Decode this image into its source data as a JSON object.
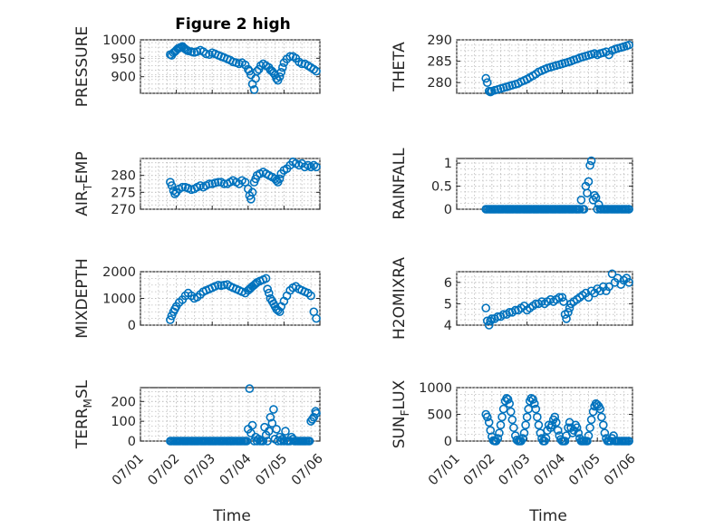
{
  "figure": {
    "title": "Figure 2 high",
    "marker_color": "#0072BD",
    "time_ticks": [
      "07/01",
      "07/02",
      "07/03",
      "07/04",
      "07/05",
      "07/06"
    ],
    "time_tick_days": [
      1,
      2,
      3,
      4,
      5,
      6
    ],
    "xlabel": "Time"
  },
  "chart_data": [
    {
      "type": "scatter",
      "ylabel": "PRESSURE",
      "title": "Figure 2 high",
      "xlim": [
        1,
        6
      ],
      "ylim": [
        855,
        1000
      ],
      "yticks": [
        900,
        950,
        1000
      ],
      "ytick_labels": [
        "900",
        "950",
        "1000"
      ],
      "grid": true,
      "x": [
        1.83,
        1.87,
        1.92,
        1.96,
        2.0,
        2.04,
        2.08,
        2.12,
        2.17,
        2.21,
        2.25,
        2.29,
        2.33,
        2.42,
        2.5,
        2.58,
        2.67,
        2.75,
        2.83,
        2.92,
        3.0,
        3.08,
        3.17,
        3.25,
        3.33,
        3.42,
        3.5,
        3.58,
        3.67,
        3.75,
        3.83,
        3.92,
        4.0,
        4.04,
        4.08,
        4.12,
        4.17,
        4.21,
        4.25,
        4.3,
        4.35,
        4.42,
        4.5,
        4.58,
        4.62,
        4.67,
        4.71,
        4.75,
        4.79,
        4.83,
        4.88,
        4.92,
        4.96,
        5.0,
        5.08,
        5.17,
        5.25,
        5.33,
        5.42,
        5.5,
        5.58,
        5.67,
        5.75,
        5.83,
        5.9
      ],
      "y": [
        960,
        958,
        965,
        968,
        972,
        976,
        978,
        980,
        982,
        978,
        975,
        972,
        970,
        968,
        966,
        968,
        972,
        968,
        962,
        960,
        965,
        962,
        958,
        955,
        952,
        948,
        945,
        940,
        938,
        935,
        938,
        932,
        920,
        915,
        905,
        880,
        865,
        895,
        915,
        920,
        930,
        935,
        930,
        925,
        918,
        915,
        910,
        905,
        895,
        890,
        900,
        912,
        925,
        938,
        948,
        955,
        955,
        950,
        940,
        935,
        935,
        930,
        925,
        920,
        915
      ]
    },
    {
      "type": "scatter",
      "ylabel": "THETA",
      "xlim": [
        1,
        6
      ],
      "ylim": [
        277.5,
        290
      ],
      "yticks": [
        280,
        285,
        290
      ],
      "ytick_labels": [
        "280",
        "285",
        "290"
      ],
      "grid": true,
      "x": [
        1.83,
        1.87,
        1.92,
        1.96,
        2.0,
        2.08,
        2.17,
        2.25,
        2.33,
        2.42,
        2.5,
        2.58,
        2.67,
        2.75,
        2.83,
        2.92,
        3.0,
        3.08,
        3.17,
        3.25,
        3.33,
        3.42,
        3.5,
        3.58,
        3.67,
        3.75,
        3.83,
        3.92,
        4.0,
        4.08,
        4.17,
        4.25,
        4.33,
        4.42,
        4.5,
        4.58,
        4.67,
        4.75,
        4.83,
        4.92,
        5.0,
        5.08,
        5.17,
        5.25,
        5.33,
        5.42,
        5.5,
        5.58,
        5.67,
        5.75,
        5.83,
        5.9
      ],
      "y": [
        281,
        280,
        278,
        277.8,
        278,
        278.2,
        278.4,
        278.6,
        278.8,
        279,
        279.2,
        279.4,
        279.6,
        279.8,
        280.2,
        280.5,
        280.8,
        281.2,
        281.6,
        282,
        282.5,
        282.8,
        283.1,
        283.4,
        283.6,
        283.8,
        284,
        284.2,
        284.4,
        284.6,
        284.8,
        285,
        285.3,
        285.5,
        285.8,
        286,
        286.2,
        286.4,
        286.6,
        286.8,
        286.5,
        286.8,
        287,
        287.2,
        286.5,
        287.5,
        287.8,
        288,
        288.2,
        288.4,
        288.6,
        288.8
      ]
    },
    {
      "type": "scatter",
      "ylabel": "AIR_TEMP",
      "xlim": [
        1,
        6
      ],
      "ylim": [
        270,
        285
      ],
      "yticks": [
        270,
        275,
        280
      ],
      "ytick_labels": [
        "270",
        "275",
        "280"
      ],
      "grid": true,
      "x": [
        1.83,
        1.87,
        1.92,
        1.96,
        2.0,
        2.08,
        2.17,
        2.25,
        2.33,
        2.42,
        2.5,
        2.58,
        2.67,
        2.75,
        2.83,
        2.92,
        3.0,
        3.08,
        3.17,
        3.25,
        3.33,
        3.42,
        3.5,
        3.58,
        3.67,
        3.75,
        3.83,
        3.92,
        4.0,
        4.04,
        4.08,
        4.12,
        4.17,
        4.21,
        4.25,
        4.33,
        4.42,
        4.5,
        4.58,
        4.67,
        4.75,
        4.79,
        4.83,
        4.88,
        4.92,
        5.0,
        5.08,
        5.17,
        5.25,
        5.33,
        5.42,
        5.5,
        5.58,
        5.67,
        5.75,
        5.83,
        5.9
      ],
      "y": [
        278,
        277,
        275.5,
        274.5,
        275,
        276,
        276.5,
        276.5,
        276.2,
        275.8,
        276,
        276.5,
        277,
        276.5,
        277,
        277.5,
        277.5,
        277.8,
        278,
        278,
        277.5,
        277.5,
        278,
        278.5,
        278,
        277.5,
        278.5,
        278,
        276,
        274,
        273,
        275,
        278,
        279,
        280,
        280.5,
        281,
        280.5,
        280,
        279.5,
        279,
        278.5,
        278,
        279,
        280.5,
        281.5,
        282,
        283,
        284,
        283.5,
        283,
        283.5,
        282.5,
        283,
        282.5,
        283,
        282.5
      ]
    },
    {
      "type": "scatter",
      "ylabel": "RAINFALL",
      "xlim": [
        1,
        6
      ],
      "ylim": [
        0,
        1.1
      ],
      "yticks": [
        0,
        0.5,
        1
      ],
      "ytick_labels": [
        "0",
        "0.5",
        "1"
      ],
      "grid": true,
      "x": [
        1.83,
        1.87,
        1.92,
        1.96,
        2.0,
        2.04,
        2.08,
        2.12,
        2.17,
        2.21,
        2.25,
        2.29,
        2.33,
        2.38,
        2.42,
        2.46,
        2.5,
        2.54,
        2.58,
        2.62,
        2.67,
        2.71,
        2.75,
        2.79,
        2.83,
        2.88,
        2.92,
        2.96,
        3.0,
        3.04,
        3.08,
        3.12,
        3.17,
        3.21,
        3.25,
        3.29,
        3.33,
        3.38,
        3.42,
        3.46,
        3.5,
        3.54,
        3.58,
        3.62,
        3.67,
        3.71,
        3.75,
        3.79,
        3.83,
        3.88,
        3.92,
        3.96,
        4.0,
        4.04,
        4.08,
        4.12,
        4.17,
        4.21,
        4.25,
        4.29,
        4.33,
        4.38,
        4.42,
        4.46,
        4.5,
        4.54,
        4.58,
        4.62,
        4.67,
        4.71,
        4.75,
        4.79,
        4.83,
        4.88,
        4.92,
        4.96,
        5.0,
        5.04,
        5.08,
        5.12,
        5.17,
        5.21,
        5.25,
        5.29,
        5.33,
        5.38,
        5.42,
        5.46,
        5.5,
        5.54,
        5.58,
        5.62,
        5.67,
        5.71,
        5.75,
        5.79,
        5.83,
        5.88,
        5.9
      ],
      "y": [
        0,
        0,
        0,
        0,
        0,
        0,
        0,
        0,
        0,
        0,
        0,
        0,
        0,
        0,
        0,
        0,
        0,
        0,
        0,
        0,
        0,
        0,
        0,
        0,
        0,
        0,
        0,
        0,
        0,
        0,
        0,
        0,
        0,
        0,
        0,
        0,
        0,
        0,
        0,
        0,
        0,
        0,
        0,
        0,
        0,
        0,
        0,
        0,
        0,
        0,
        0,
        0,
        0,
        0,
        0,
        0,
        0,
        0,
        0,
        0,
        0,
        0,
        0,
        0,
        0,
        0.2,
        0,
        0,
        0.5,
        0.35,
        0.6,
        0.95,
        1.05,
        0.2,
        0.3,
        0.25,
        0,
        0.1,
        0,
        0,
        0,
        0,
        0,
        0,
        0,
        0,
        0,
        0,
        0,
        0,
        0,
        0,
        0,
        0,
        0,
        0,
        0,
        0,
        0
      ]
    },
    {
      "type": "scatter",
      "ylabel": "MIXDEPTH",
      "xlim": [
        1,
        6
      ],
      "ylim": [
        0,
        2000
      ],
      "yticks": [
        0,
        1000,
        2000
      ],
      "ytick_labels": [
        "0",
        "1000",
        "2000"
      ],
      "grid": true,
      "x": [
        1.83,
        1.87,
        1.92,
        1.96,
        2.0,
        2.08,
        2.17,
        2.25,
        2.33,
        2.42,
        2.5,
        2.58,
        2.67,
        2.75,
        2.83,
        2.92,
        3.0,
        3.08,
        3.17,
        3.25,
        3.33,
        3.42,
        3.5,
        3.58,
        3.67,
        3.75,
        3.83,
        3.92,
        4.0,
        4.04,
        4.08,
        4.12,
        4.17,
        4.21,
        4.25,
        4.33,
        4.42,
        4.5,
        4.54,
        4.58,
        4.62,
        4.67,
        4.71,
        4.75,
        4.79,
        4.83,
        4.88,
        4.92,
        5.0,
        5.08,
        5.17,
        5.25,
        5.33,
        5.42,
        5.5,
        5.58,
        5.67,
        5.75,
        5.83,
        5.9
      ],
      "y": [
        200,
        350,
        500,
        600,
        700,
        850,
        950,
        1100,
        1200,
        1100,
        1000,
        1050,
        1150,
        1250,
        1300,
        1350,
        1400,
        1450,
        1500,
        1480,
        1500,
        1520,
        1450,
        1400,
        1350,
        1300,
        1250,
        1200,
        1300,
        1350,
        1400,
        1450,
        1500,
        1550,
        1600,
        1650,
        1700,
        1750,
        1350,
        1200,
        1000,
        900,
        800,
        700,
        600,
        550,
        500,
        700,
        900,
        1100,
        1300,
        1400,
        1450,
        1350,
        1300,
        1250,
        1200,
        1100,
        500,
        250
      ]
    },
    {
      "type": "scatter",
      "ylabel": "H2OMIXRA",
      "xlim": [
        1,
        6
      ],
      "ylim": [
        4,
        6.5
      ],
      "yticks": [
        4,
        5,
        6
      ],
      "ytick_labels": [
        "4",
        "5",
        "6"
      ],
      "grid": true,
      "x": [
        1.83,
        1.87,
        1.92,
        1.96,
        2.0,
        2.08,
        2.17,
        2.25,
        2.33,
        2.42,
        2.5,
        2.58,
        2.67,
        2.75,
        2.83,
        2.92,
        3.0,
        3.08,
        3.17,
        3.25,
        3.33,
        3.42,
        3.5,
        3.58,
        3.67,
        3.75,
        3.83,
        3.92,
        4.0,
        4.04,
        4.08,
        4.12,
        4.17,
        4.21,
        4.25,
        4.33,
        4.42,
        4.5,
        4.58,
        4.67,
        4.75,
        4.83,
        4.92,
        5.0,
        5.08,
        5.17,
        5.25,
        5.33,
        5.42,
        5.5,
        5.58,
        5.67,
        5.75,
        5.83,
        5.9
      ],
      "y": [
        4.8,
        4.2,
        4.0,
        4.2,
        4.3,
        4.3,
        4.4,
        4.4,
        4.5,
        4.5,
        4.6,
        4.6,
        4.7,
        4.7,
        4.8,
        4.9,
        4.7,
        4.8,
        4.9,
        5.0,
        5.0,
        5.1,
        5.0,
        5.1,
        5.2,
        5.1,
        5.2,
        5.3,
        5.3,
        5.1,
        4.5,
        4.3,
        4.6,
        4.8,
        5.0,
        5.1,
        5.2,
        5.3,
        5.4,
        5.5,
        5.3,
        5.6,
        5.5,
        5.7,
        5.6,
        5.8,
        5.6,
        5.8,
        6.4,
        6.0,
        6.2,
        5.9,
        6.1,
        6.2,
        6.0
      ]
    },
    {
      "type": "scatter",
      "ylabel": "TERR_MSL",
      "xlim": [
        1,
        6
      ],
      "ylim": [
        0,
        270
      ],
      "yticks": [
        0,
        100,
        200
      ],
      "ytick_labels": [
        "0",
        "100",
        "200"
      ],
      "grid": true,
      "x": [
        1.83,
        1.87,
        1.92,
        1.96,
        2.0,
        2.04,
        2.08,
        2.12,
        2.17,
        2.21,
        2.25,
        2.29,
        2.33,
        2.38,
        2.42,
        2.46,
        2.5,
        2.54,
        2.58,
        2.62,
        2.67,
        2.71,
        2.75,
        2.79,
        2.83,
        2.88,
        2.92,
        2.96,
        3.0,
        3.04,
        3.08,
        3.12,
        3.17,
        3.21,
        3.25,
        3.29,
        3.33,
        3.38,
        3.42,
        3.46,
        3.5,
        3.54,
        3.58,
        3.62,
        3.67,
        3.71,
        3.75,
        3.79,
        3.83,
        3.88,
        3.92,
        3.96,
        4.0,
        4.04,
        4.08,
        4.12,
        4.17,
        4.21,
        4.25,
        4.29,
        4.33,
        4.38,
        4.42,
        4.46,
        4.5,
        4.54,
        4.58,
        4.62,
        4.67,
        4.71,
        4.75,
        4.79,
        4.83,
        4.88,
        4.92,
        4.96,
        5.0,
        5.04,
        5.08,
        5.12,
        5.17,
        5.21,
        5.25,
        5.29,
        5.33,
        5.38,
        5.42,
        5.46,
        5.5,
        5.54,
        5.58,
        5.62,
        5.67,
        5.71,
        5.75,
        5.79,
        5.83,
        5.88,
        5.9
      ],
      "y": [
        0,
        0,
        0,
        0,
        0,
        0,
        0,
        0,
        0,
        0,
        0,
        0,
        0,
        0,
        0,
        0,
        0,
        0,
        0,
        0,
        0,
        0,
        0,
        0,
        0,
        0,
        0,
        0,
        0,
        0,
        0,
        0,
        0,
        0,
        0,
        0,
        0,
        0,
        0,
        0,
        0,
        0,
        0,
        0,
        0,
        0,
        0,
        0,
        0,
        0,
        0,
        0,
        60,
        265,
        40,
        80,
        0,
        20,
        0,
        10,
        0,
        0,
        0,
        70,
        30,
        0,
        50,
        120,
        90,
        160,
        10,
        60,
        0,
        20,
        0,
        10,
        0,
        50,
        0,
        0,
        0,
        20,
        10,
        0,
        0,
        0,
        0,
        0,
        0,
        0,
        0,
        0,
        0,
        0,
        100,
        110,
        120,
        150,
        140
      ]
    },
    {
      "type": "scatter",
      "ylabel": "SUN_FLUX",
      "xlim": [
        1,
        6
      ],
      "ylim": [
        0,
        1000
      ],
      "yticks": [
        0,
        500,
        1000
      ],
      "ytick_labels": [
        "0",
        "500",
        "1000"
      ],
      "grid": true,
      "x": [
        1.83,
        1.87,
        1.92,
        1.96,
        2.0,
        2.04,
        2.08,
        2.12,
        2.17,
        2.21,
        2.25,
        2.29,
        2.33,
        2.38,
        2.42,
        2.46,
        2.5,
        2.54,
        2.58,
        2.62,
        2.67,
        2.71,
        2.75,
        2.79,
        2.83,
        2.88,
        2.92,
        2.96,
        3.0,
        3.04,
        3.08,
        3.12,
        3.17,
        3.21,
        3.25,
        3.29,
        3.33,
        3.38,
        3.42,
        3.46,
        3.5,
        3.54,
        3.58,
        3.62,
        3.67,
        3.71,
        3.75,
        3.79,
        3.83,
        3.88,
        3.92,
        3.96,
        4.0,
        4.04,
        4.08,
        4.12,
        4.17,
        4.21,
        4.25,
        4.29,
        4.33,
        4.38,
        4.42,
        4.46,
        4.5,
        4.54,
        4.58,
        4.62,
        4.67,
        4.71,
        4.75,
        4.79,
        4.83,
        4.88,
        4.92,
        4.96,
        5.0,
        5.04,
        5.08,
        5.12,
        5.17,
        5.21,
        5.25,
        5.29,
        5.33,
        5.38,
        5.42,
        5.46,
        5.5,
        5.54,
        5.58,
        5.62,
        5.67,
        5.71,
        5.75,
        5.79,
        5.83,
        5.88,
        5.9
      ],
      "y": [
        500,
        450,
        350,
        200,
        80,
        10,
        0,
        0,
        50,
        150,
        300,
        450,
        600,
        750,
        800,
        780,
        700,
        550,
        400,
        250,
        100,
        20,
        0,
        0,
        0,
        50,
        150,
        300,
        450,
        600,
        750,
        800,
        780,
        700,
        600,
        450,
        300,
        150,
        50,
        0,
        0,
        50,
        200,
        300,
        250,
        300,
        400,
        450,
        350,
        200,
        100,
        30,
        0,
        0,
        0,
        100,
        250,
        350,
        250,
        150,
        200,
        300,
        250,
        150,
        50,
        0,
        0,
        0,
        0,
        0,
        100,
        250,
        400,
        550,
        650,
        700,
        680,
        650,
        600,
        450,
        300,
        150,
        50,
        0,
        0,
        0,
        50,
        100,
        0,
        0,
        0,
        0,
        0,
        0,
        0,
        0,
        0,
        0,
        0
      ]
    }
  ]
}
